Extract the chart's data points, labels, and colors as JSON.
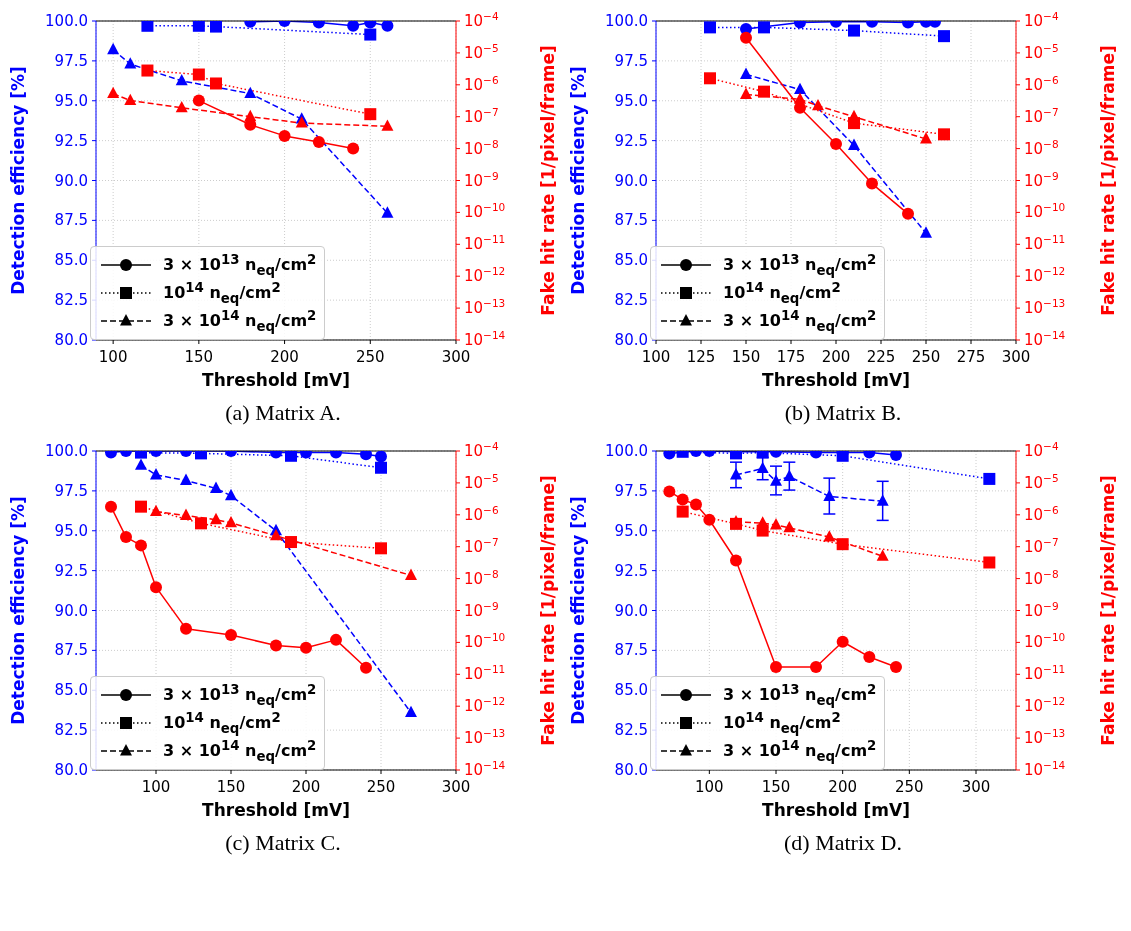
{
  "chart_data": [
    {
      "type": "line",
      "title": "(a) Matrix A.",
      "xlabel": "Threshold [mV]",
      "ylabel": "Detection efficiency [%]",
      "y2label": "Fake hit rate [1/pixel/frame]",
      "annotations": [
        "3 × 10$^{13}$ n$_{eq}$/cm$^{2}$",
        "10$^{14}$ n$_{eq}$/cm$^{2}$",
        "3 × 10$^{14}$ n$_{eq}$/cm$^{2}$"
      ],
      "xlim": [
        90,
        300
      ],
      "xticks": [
        100,
        150,
        200,
        250,
        300
      ],
      "ylim": [
        80,
        100
      ],
      "yticks": [
        {
          "value": 80,
          "label": "80.0"
        },
        {
          "value": 82.5,
          "label": "82.5"
        },
        {
          "value": 85,
          "label": "85.0"
        },
        {
          "value": 87.5,
          "label": "87.5"
        },
        {
          "value": 90,
          "label": "90.0"
        },
        {
          "value": 92.5,
          "label": "92.5"
        },
        {
          "value": 95,
          "label": "95.0"
        },
        {
          "value": 97.5,
          "label": "97.5"
        },
        {
          "value": 100,
          "label": "100.0"
        }
      ],
      "y2lim": [
        1e-14,
        0.0001
      ],
      "y2ticks": [
        {
          "value": 1e-14,
          "label": "10$^{−14}$"
        },
        {
          "value": 1e-13,
          "label": "10$^{−13}$"
        },
        {
          "value": 1e-12,
          "label": "10$^{−12}$"
        },
        {
          "value": 1e-11,
          "label": "10$^{−11}$"
        },
        {
          "value": 1e-10,
          "label": "10$^{−10}$"
        },
        {
          "value": 1e-09,
          "label": "10$^{−9}$"
        },
        {
          "value": 1e-08,
          "label": "10$^{−8}$"
        },
        {
          "value": 1e-07,
          "label": "10$^{−7}$"
        },
        {
          "value": 1e-06,
          "label": "10$^{−6}$"
        },
        {
          "value": 1e-05,
          "label": "10$^{−5}$"
        },
        {
          "value": 0.0001,
          "label": "10$^{−4}$"
        }
      ],
      "log": "y2",
      "grid": true,
      "series": [
        {
          "color": "#0000ff",
          "marker": "circle",
          "line_style": "solid",
          "x": [
            180,
            200,
            220,
            240,
            250,
            260
          ],
          "values": [
            99.95,
            100.0,
            99.9,
            99.7,
            99.9,
            99.7
          ]
        },
        {
          "color": "#0000ff",
          "marker": "square",
          "line_style": "dotted",
          "x": [
            120,
            150,
            160,
            250
          ],
          "values": [
            99.7,
            99.7,
            99.65,
            99.15
          ]
        },
        {
          "color": "#0000ff",
          "marker": "triangle",
          "line_style": "dashed",
          "x": [
            100,
            110,
            140,
            180,
            210,
            260
          ],
          "values": [
            98.2,
            97.3,
            96.25,
            95.45,
            93.85,
            87.95
          ]
        },
        {
          "color": "#ff0000",
          "marker": "circle",
          "line_style": "solid",
          "axis": "y2",
          "x": [
            150,
            180,
            200,
            220,
            240
          ],
          "values": [
            3.2e-07,
            5.6e-08,
            2.5e-08,
            1.6e-08,
            1e-08
          ]
        },
        {
          "color": "#ff0000",
          "marker": "square",
          "line_style": "dotted",
          "axis": "y2",
          "x": [
            120,
            150,
            160,
            250
          ],
          "values": [
            2.8e-06,
            2.1e-06,
            1.1e-06,
            1.2e-07
          ]
        },
        {
          "color": "#ff0000",
          "marker": "triangle",
          "line_style": "dashed",
          "axis": "y2",
          "x": [
            100,
            110,
            140,
            180,
            210,
            260
          ],
          "values": [
            5.3e-07,
            3.2e-07,
            1.9e-07,
            1e-07,
            6.3e-08,
            5e-08
          ]
        }
      ]
    },
    {
      "type": "line",
      "title": "(b) Matrix B.",
      "xlabel": "Threshold [mV]",
      "ylabel": "Detection efficiency [%]",
      "y2label": "Fake hit rate [1/pixel/frame]",
      "annotations": [
        "3 × 10$^{13}$ n$_{eq}$/cm$^{2}$",
        "10$^{14}$ n$_{eq}$/cm$^{2}$",
        "3 × 10$^{14}$ n$_{eq}$/cm$^{2}$"
      ],
      "xlim": [
        100,
        300
      ],
      "xticks": [
        100,
        125,
        150,
        175,
        200,
        225,
        250,
        275,
        300
      ],
      "ylim": [
        80,
        100
      ],
      "yticks": [
        {
          "value": 80,
          "label": "80.0"
        },
        {
          "value": 82.5,
          "label": "82.5"
        },
        {
          "value": 85,
          "label": "85.0"
        },
        {
          "value": 87.5,
          "label": "87.5"
        },
        {
          "value": 90,
          "label": "90.0"
        },
        {
          "value": 92.5,
          "label": "92.5"
        },
        {
          "value": 95,
          "label": "95.0"
        },
        {
          "value": 97.5,
          "label": "97.5"
        },
        {
          "value": 100,
          "label": "100.0"
        }
      ],
      "y2lim": [
        1e-14,
        0.0001
      ],
      "y2ticks": [
        {
          "value": 1e-14,
          "label": "10$^{−14}$"
        },
        {
          "value": 1e-13,
          "label": "10$^{−13}$"
        },
        {
          "value": 1e-12,
          "label": "10$^{−12}$"
        },
        {
          "value": 1e-11,
          "label": "10$^{−11}$"
        },
        {
          "value": 1e-10,
          "label": "10$^{−10}$"
        },
        {
          "value": 1e-09,
          "label": "10$^{−9}$"
        },
        {
          "value": 1e-08,
          "label": "10$^{−8}$"
        },
        {
          "value": 1e-07,
          "label": "10$^{−7}$"
        },
        {
          "value": 1e-06,
          "label": "10$^{−6}$"
        },
        {
          "value": 1e-05,
          "label": "10$^{−5}$"
        },
        {
          "value": 0.0001,
          "label": "10$^{−4}$"
        }
      ],
      "log": "y2",
      "grid": true,
      "series": [
        {
          "color": "#0000ff",
          "marker": "circle",
          "line_style": "solid",
          "x": [
            150,
            180,
            200,
            220,
            240,
            250,
            255
          ],
          "values": [
            99.5,
            99.9,
            99.95,
            99.95,
            99.9,
            99.95,
            99.95
          ]
        },
        {
          "color": "#0000ff",
          "marker": "square",
          "line_style": "dotted",
          "x": [
            130,
            160,
            210,
            260
          ],
          "values": [
            99.6,
            99.6,
            99.4,
            99.05
          ]
        },
        {
          "color": "#0000ff",
          "marker": "triangle",
          "line_style": "dashed",
          "x": [
            150,
            180,
            210,
            250
          ],
          "values": [
            96.65,
            95.7,
            92.2,
            86.7
          ]
        },
        {
          "color": "#ff0000",
          "marker": "circle",
          "line_style": "solid",
          "axis": "y2",
          "x": [
            150,
            180,
            200,
            220,
            240
          ],
          "values": [
            3e-05,
            1.9e-07,
            1.4e-08,
            8e-10,
            9e-11
          ]
        },
        {
          "color": "#ff0000",
          "marker": "square",
          "line_style": "dotted",
          "axis": "y2",
          "x": [
            130,
            160,
            210,
            260
          ],
          "values": [
            1.6e-06,
            6.1e-07,
            6.3e-08,
            2.8e-08
          ]
        },
        {
          "color": "#ff0000",
          "marker": "triangle",
          "line_style": "dashed",
          "axis": "y2",
          "x": [
            150,
            180,
            190,
            210,
            250
          ],
          "values": [
            5e-07,
            3.5e-07,
            2.2e-07,
            1e-07,
            2e-08
          ]
        }
      ]
    },
    {
      "type": "line",
      "title": "(c) Matrix C.",
      "xlabel": "Threshold [mV]",
      "ylabel": "Detection efficiency [%]",
      "y2label": "Fake hit rate [1/pixel/frame]",
      "annotations": [
        "3 × 10$^{13}$ n$_{eq}$/cm$^{2}$",
        "10$^{14}$ n$_{eq}$/cm$^{2}$",
        "3 × 10$^{14}$ n$_{eq}$/cm$^{2}$"
      ],
      "xlim": [
        60,
        300
      ],
      "xticks": [
        100,
        150,
        200,
        250,
        300
      ],
      "ylim": [
        80,
        100
      ],
      "yticks": [
        {
          "value": 80,
          "label": "80.0"
        },
        {
          "value": 82.5,
          "label": "82.5"
        },
        {
          "value": 85,
          "label": "85.0"
        },
        {
          "value": 87.5,
          "label": "87.5"
        },
        {
          "value": 90,
          "label": "90.0"
        },
        {
          "value": 92.5,
          "label": "92.5"
        },
        {
          "value": 95,
          "label": "95.0"
        },
        {
          "value": 97.5,
          "label": "97.5"
        },
        {
          "value": 100,
          "label": "100.0"
        }
      ],
      "y2lim": [
        1e-14,
        0.0001
      ],
      "y2ticks": [
        {
          "value": 1e-14,
          "label": "10$^{−14}$"
        },
        {
          "value": 1e-13,
          "label": "10$^{−13}$"
        },
        {
          "value": 1e-12,
          "label": "10$^{−12}$"
        },
        {
          "value": 1e-11,
          "label": "10$^{−11}$"
        },
        {
          "value": 1e-10,
          "label": "10$^{−10}$"
        },
        {
          "value": 1e-09,
          "label": "10$^{−9}$"
        },
        {
          "value": 1e-08,
          "label": "10$^{−8}$"
        },
        {
          "value": 1e-07,
          "label": "10$^{−7}$"
        },
        {
          "value": 1e-06,
          "label": "10$^{−6}$"
        },
        {
          "value": 1e-05,
          "label": "10$^{−5}$"
        },
        {
          "value": 0.0001,
          "label": "10$^{−4}$"
        }
      ],
      "log": "y2",
      "grid": true,
      "series": [
        {
          "color": "#0000ff",
          "marker": "circle",
          "line_style": "solid",
          "x": [
            70,
            80,
            90,
            100,
            120,
            150,
            180,
            200,
            220,
            240,
            250
          ],
          "values": [
            99.9,
            100.0,
            100.0,
            100.0,
            100.0,
            100.0,
            99.9,
            99.9,
            99.9,
            99.8,
            99.65
          ]
        },
        {
          "color": "#0000ff",
          "marker": "square",
          "line_style": "dotted",
          "x": [
            90,
            130,
            190,
            250
          ],
          "values": [
            99.9,
            99.85,
            99.7,
            98.95
          ]
        },
        {
          "color": "#0000ff",
          "marker": "triangle",
          "line_style": "dashed",
          "x": [
            90,
            100,
            120,
            140,
            150,
            180,
            270
          ],
          "values": [
            99.1,
            98.5,
            98.15,
            97.65,
            97.2,
            95.0,
            83.6
          ]
        },
        {
          "color": "#ff0000",
          "marker": "circle",
          "line_style": "solid",
          "axis": "y2",
          "x": [
            70,
            80,
            90,
            100,
            120,
            150,
            180,
            200,
            220,
            240
          ],
          "values": [
            1.8e-06,
            2e-07,
            1.1e-07,
            5.4e-09,
            2.7e-10,
            1.7e-10,
            8e-11,
            6.8e-11,
            1.2e-10,
            1.6e-11
          ]
        },
        {
          "color": "#ff0000",
          "marker": "square",
          "line_style": "dotted",
          "axis": "y2",
          "x": [
            90,
            130,
            190,
            250
          ],
          "values": [
            1.8e-06,
            5.4e-07,
            1.4e-07,
            8.9e-08
          ]
        },
        {
          "color": "#ff0000",
          "marker": "triangle",
          "line_style": "dashed",
          "axis": "y2",
          "x": [
            100,
            120,
            140,
            150,
            180,
            270
          ],
          "values": [
            1.26e-06,
            9.5e-07,
            7e-07,
            5.6e-07,
            2.2e-07,
            1.26e-08
          ]
        }
      ]
    },
    {
      "type": "line",
      "title": "(d) Matrix D.",
      "xlabel": "Threshold [mV]",
      "ylabel": "Detection efficiency [%]",
      "y2label": "Fake hit rate [1/pixel/frame]",
      "annotations": [
        "3 × 10$^{13}$ n$_{eq}$/cm$^{2}$",
        "10$^{14}$ n$_{eq}$/cm$^{2}$",
        "3 × 10$^{14}$ n$_{eq}$/cm$^{2}$"
      ],
      "xlim": [
        60,
        330
      ],
      "xticks": [
        100,
        150,
        200,
        250,
        300
      ],
      "ylim": [
        80,
        100
      ],
      "yticks": [
        {
          "value": 80,
          "label": "80.0"
        },
        {
          "value": 82.5,
          "label": "82.5"
        },
        {
          "value": 85,
          "label": "85.0"
        },
        {
          "value": 87.5,
          "label": "87.5"
        },
        {
          "value": 90,
          "label": "90.0"
        },
        {
          "value": 92.5,
          "label": "92.5"
        },
        {
          "value": 95,
          "label": "95.0"
        },
        {
          "value": 97.5,
          "label": "97.5"
        },
        {
          "value": 100,
          "label": "100.0"
        }
      ],
      "y2lim": [
        1e-14,
        0.0001
      ],
      "y2ticks": [
        {
          "value": 1e-14,
          "label": "10$^{−14}$"
        },
        {
          "value": 1e-13,
          "label": "10$^{−13}$"
        },
        {
          "value": 1e-12,
          "label": "10$^{−12}$"
        },
        {
          "value": 1e-11,
          "label": "10$^{−11}$"
        },
        {
          "value": 1e-10,
          "label": "10$^{−10}$"
        },
        {
          "value": 1e-09,
          "label": "10$^{−9}$"
        },
        {
          "value": 1e-08,
          "label": "10$^{−8}$"
        },
        {
          "value": 1e-07,
          "label": "10$^{−7}$"
        },
        {
          "value": 1e-06,
          "label": "10$^{−6}$"
        },
        {
          "value": 1e-05,
          "label": "10$^{−5}$"
        },
        {
          "value": 0.0001,
          "label": "10$^{−4}$"
        }
      ],
      "log": "y2",
      "grid": true,
      "series": [
        {
          "color": "#0000ff",
          "marker": "circle",
          "line_style": "solid",
          "x": [
            70,
            90,
            100,
            120,
            150,
            180,
            200,
            220,
            240
          ],
          "values": [
            99.85,
            100.0,
            100.0,
            99.95,
            99.95,
            99.9,
            99.9,
            99.9,
            99.75
          ]
        },
        {
          "color": "#0000ff",
          "marker": "square",
          "line_style": "dotted",
          "x": [
            80,
            120,
            140,
            200,
            310
          ],
          "values": [
            99.95,
            99.85,
            99.9,
            99.7,
            98.25
          ]
        },
        {
          "color": "#0000ff",
          "marker": "triangle",
          "line_style": "dashed",
          "x": [
            120,
            140,
            150,
            160,
            190,
            230
          ],
          "values": [
            98.5,
            98.9,
            98.1,
            98.4,
            97.15,
            96.85
          ],
          "errors": [
            [
              97.7,
              99.3
            ],
            [
              98.2,
              99.6
            ],
            [
              97.25,
              99.05
            ],
            [
              97.55,
              99.3
            ],
            [
              96.05,
              98.3
            ],
            [
              95.65,
              98.1
            ]
          ]
        },
        {
          "color": "#ff0000",
          "marker": "circle",
          "line_style": "solid",
          "axis": "y2",
          "x": [
            70,
            80,
            90,
            100,
            120,
            150,
            180,
            200,
            220,
            240
          ],
          "values": [
            5.4e-06,
            3e-06,
            2.1e-06,
            7e-07,
            3.7e-08,
            1.7e-11,
            1.7e-11,
            1.05e-10,
            3.5e-11,
            1.7e-11
          ]
        },
        {
          "color": "#ff0000",
          "marker": "square",
          "line_style": "dotted",
          "axis": "y2",
          "x": [
            80,
            120,
            140,
            200,
            310
          ],
          "values": [
            1.26e-06,
            5.2e-07,
            3.2e-07,
            1.2e-07,
            3.2e-08
          ]
        },
        {
          "color": "#ff0000",
          "marker": "triangle",
          "line_style": "dashed",
          "axis": "y2",
          "x": [
            120,
            140,
            150,
            160,
            190,
            230
          ],
          "values": [
            6e-07,
            5.5e-07,
            4.8e-07,
            3.9e-07,
            2e-07,
            5e-08
          ]
        }
      ]
    }
  ]
}
